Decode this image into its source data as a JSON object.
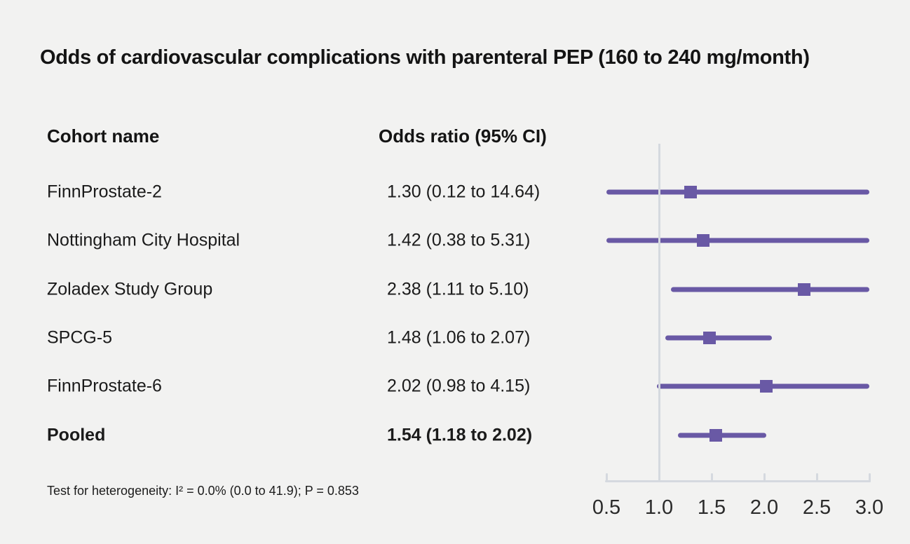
{
  "title": "Odds of cardiovascular complications with parenteral PEP (160 to 240 mg/month)",
  "columns": {
    "cohort_header": "Cohort name",
    "or_header": "Odds ratio (95% CI)"
  },
  "footnote": "Test for heterogeneity: I² = 0.0% (0.0 to 41.9); P = 0.853",
  "chart_data": {
    "type": "forest",
    "title": "Odds of cardiovascular complications with parenteral PEP (160 to 240 mg/month)",
    "xlabel": "",
    "ylabel": "",
    "xlim": [
      0.5,
      3.0
    ],
    "xticks": [
      0.5,
      1.0,
      1.5,
      2.0,
      2.5,
      3.0
    ],
    "xtick_labels": [
      "0.5",
      "1.0",
      "1.5",
      "2.0",
      "2.5",
      "3.0"
    ],
    "reference_line": 1.0,
    "grid": false,
    "rows": [
      {
        "label": "FinnProstate-2",
        "or": 1.3,
        "ci_low": 0.12,
        "ci_high": 14.64,
        "text": "1.30 (0.12 to 14.64)",
        "bold": false
      },
      {
        "label": "Nottingham City Hospital",
        "or": 1.42,
        "ci_low": 0.38,
        "ci_high": 5.31,
        "text": "1.42 (0.38 to 5.31)",
        "bold": false
      },
      {
        "label": "Zoladex Study Group",
        "or": 2.38,
        "ci_low": 1.11,
        "ci_high": 5.1,
        "text": "2.38 (1.11 to 5.10)",
        "bold": false
      },
      {
        "label": "SPCG-5",
        "or": 1.48,
        "ci_low": 1.06,
        "ci_high": 2.07,
        "text": "1.48 (1.06 to 2.07)",
        "bold": false
      },
      {
        "label": "FinnProstate-6",
        "or": 2.02,
        "ci_low": 0.98,
        "ci_high": 4.15,
        "text": "2.02 (0.98 to 4.15)",
        "bold": false
      },
      {
        "label": "Pooled",
        "or": 1.54,
        "ci_low": 1.18,
        "ci_high": 2.02,
        "text": "1.54 (1.18 to 2.02)",
        "bold": true
      }
    ],
    "colors": {
      "marker": "#6959a5",
      "axis": "#d5d9df",
      "background": "#f2f2f1",
      "text": "#1b1b1b"
    }
  }
}
